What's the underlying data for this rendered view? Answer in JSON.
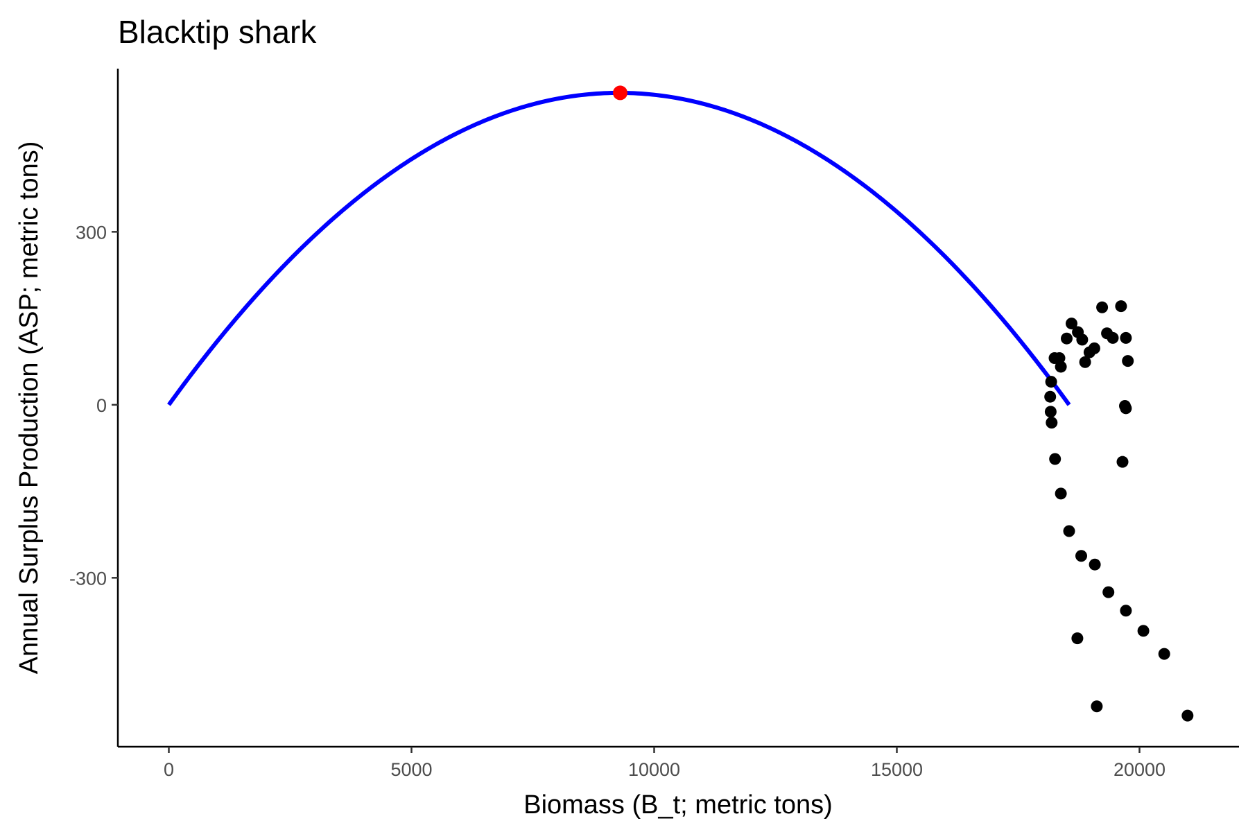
{
  "chart_data": {
    "type": "scatter",
    "title": "Blacktip shark",
    "xlabel": "Biomass (B_t; metric tons)",
    "ylabel": "Annual Surplus Production (ASP; metric tons)",
    "xlim": [
      -1050,
      22050
    ],
    "ylim": [
      -593,
      583
    ],
    "x_ticks": [
      0,
      5000,
      10000,
      15000,
      20000
    ],
    "x_tick_labels": [
      "0",
      "5000",
      "10000",
      "15000",
      "20000"
    ],
    "y_ticks": [
      -300,
      0,
      300
    ],
    "y_tick_labels": [
      "-300",
      "0",
      "300"
    ],
    "grid": false,
    "legend": "none",
    "colors": {
      "curve": "#0000ff",
      "points": "#000000",
      "peak": "#ff0000"
    },
    "curve": {
      "name": "",
      "form": "logistic surplus production",
      "x_start": 0,
      "x_end": 18550,
      "peak": {
        "x": 9300,
        "y": 541
      }
    },
    "points": [
      {
        "x": 18180,
        "y": 40
      },
      {
        "x": 18160,
        "y": 14
      },
      {
        "x": 18170,
        "y": -12
      },
      {
        "x": 18190,
        "y": -31
      },
      {
        "x": 18250,
        "y": 81
      },
      {
        "x": 18350,
        "y": 81
      },
      {
        "x": 18380,
        "y": 66
      },
      {
        "x": 18260,
        "y": -94
      },
      {
        "x": 18380,
        "y": -154
      },
      {
        "x": 18500,
        "y": 115
      },
      {
        "x": 18600,
        "y": 141
      },
      {
        "x": 18730,
        "y": 126
      },
      {
        "x": 18820,
        "y": 113
      },
      {
        "x": 18880,
        "y": 74
      },
      {
        "x": 18970,
        "y": 91
      },
      {
        "x": 19070,
        "y": 98
      },
      {
        "x": 19230,
        "y": 169
      },
      {
        "x": 19330,
        "y": 124
      },
      {
        "x": 19450,
        "y": 116
      },
      {
        "x": 19620,
        "y": 171
      },
      {
        "x": 19720,
        "y": 116
      },
      {
        "x": 19760,
        "y": 76
      },
      {
        "x": 19700,
        "y": -2
      },
      {
        "x": 19720,
        "y": -6
      },
      {
        "x": 19650,
        "y": -99
      },
      {
        "x": 18550,
        "y": -219
      },
      {
        "x": 18800,
        "y": -262
      },
      {
        "x": 19080,
        "y": -277
      },
      {
        "x": 19360,
        "y": -325
      },
      {
        "x": 19720,
        "y": -357
      },
      {
        "x": 18720,
        "y": -405
      },
      {
        "x": 20080,
        "y": -392
      },
      {
        "x": 20510,
        "y": -432
      },
      {
        "x": 19120,
        "y": -523
      },
      {
        "x": 20990,
        "y": -539
      }
    ]
  }
}
